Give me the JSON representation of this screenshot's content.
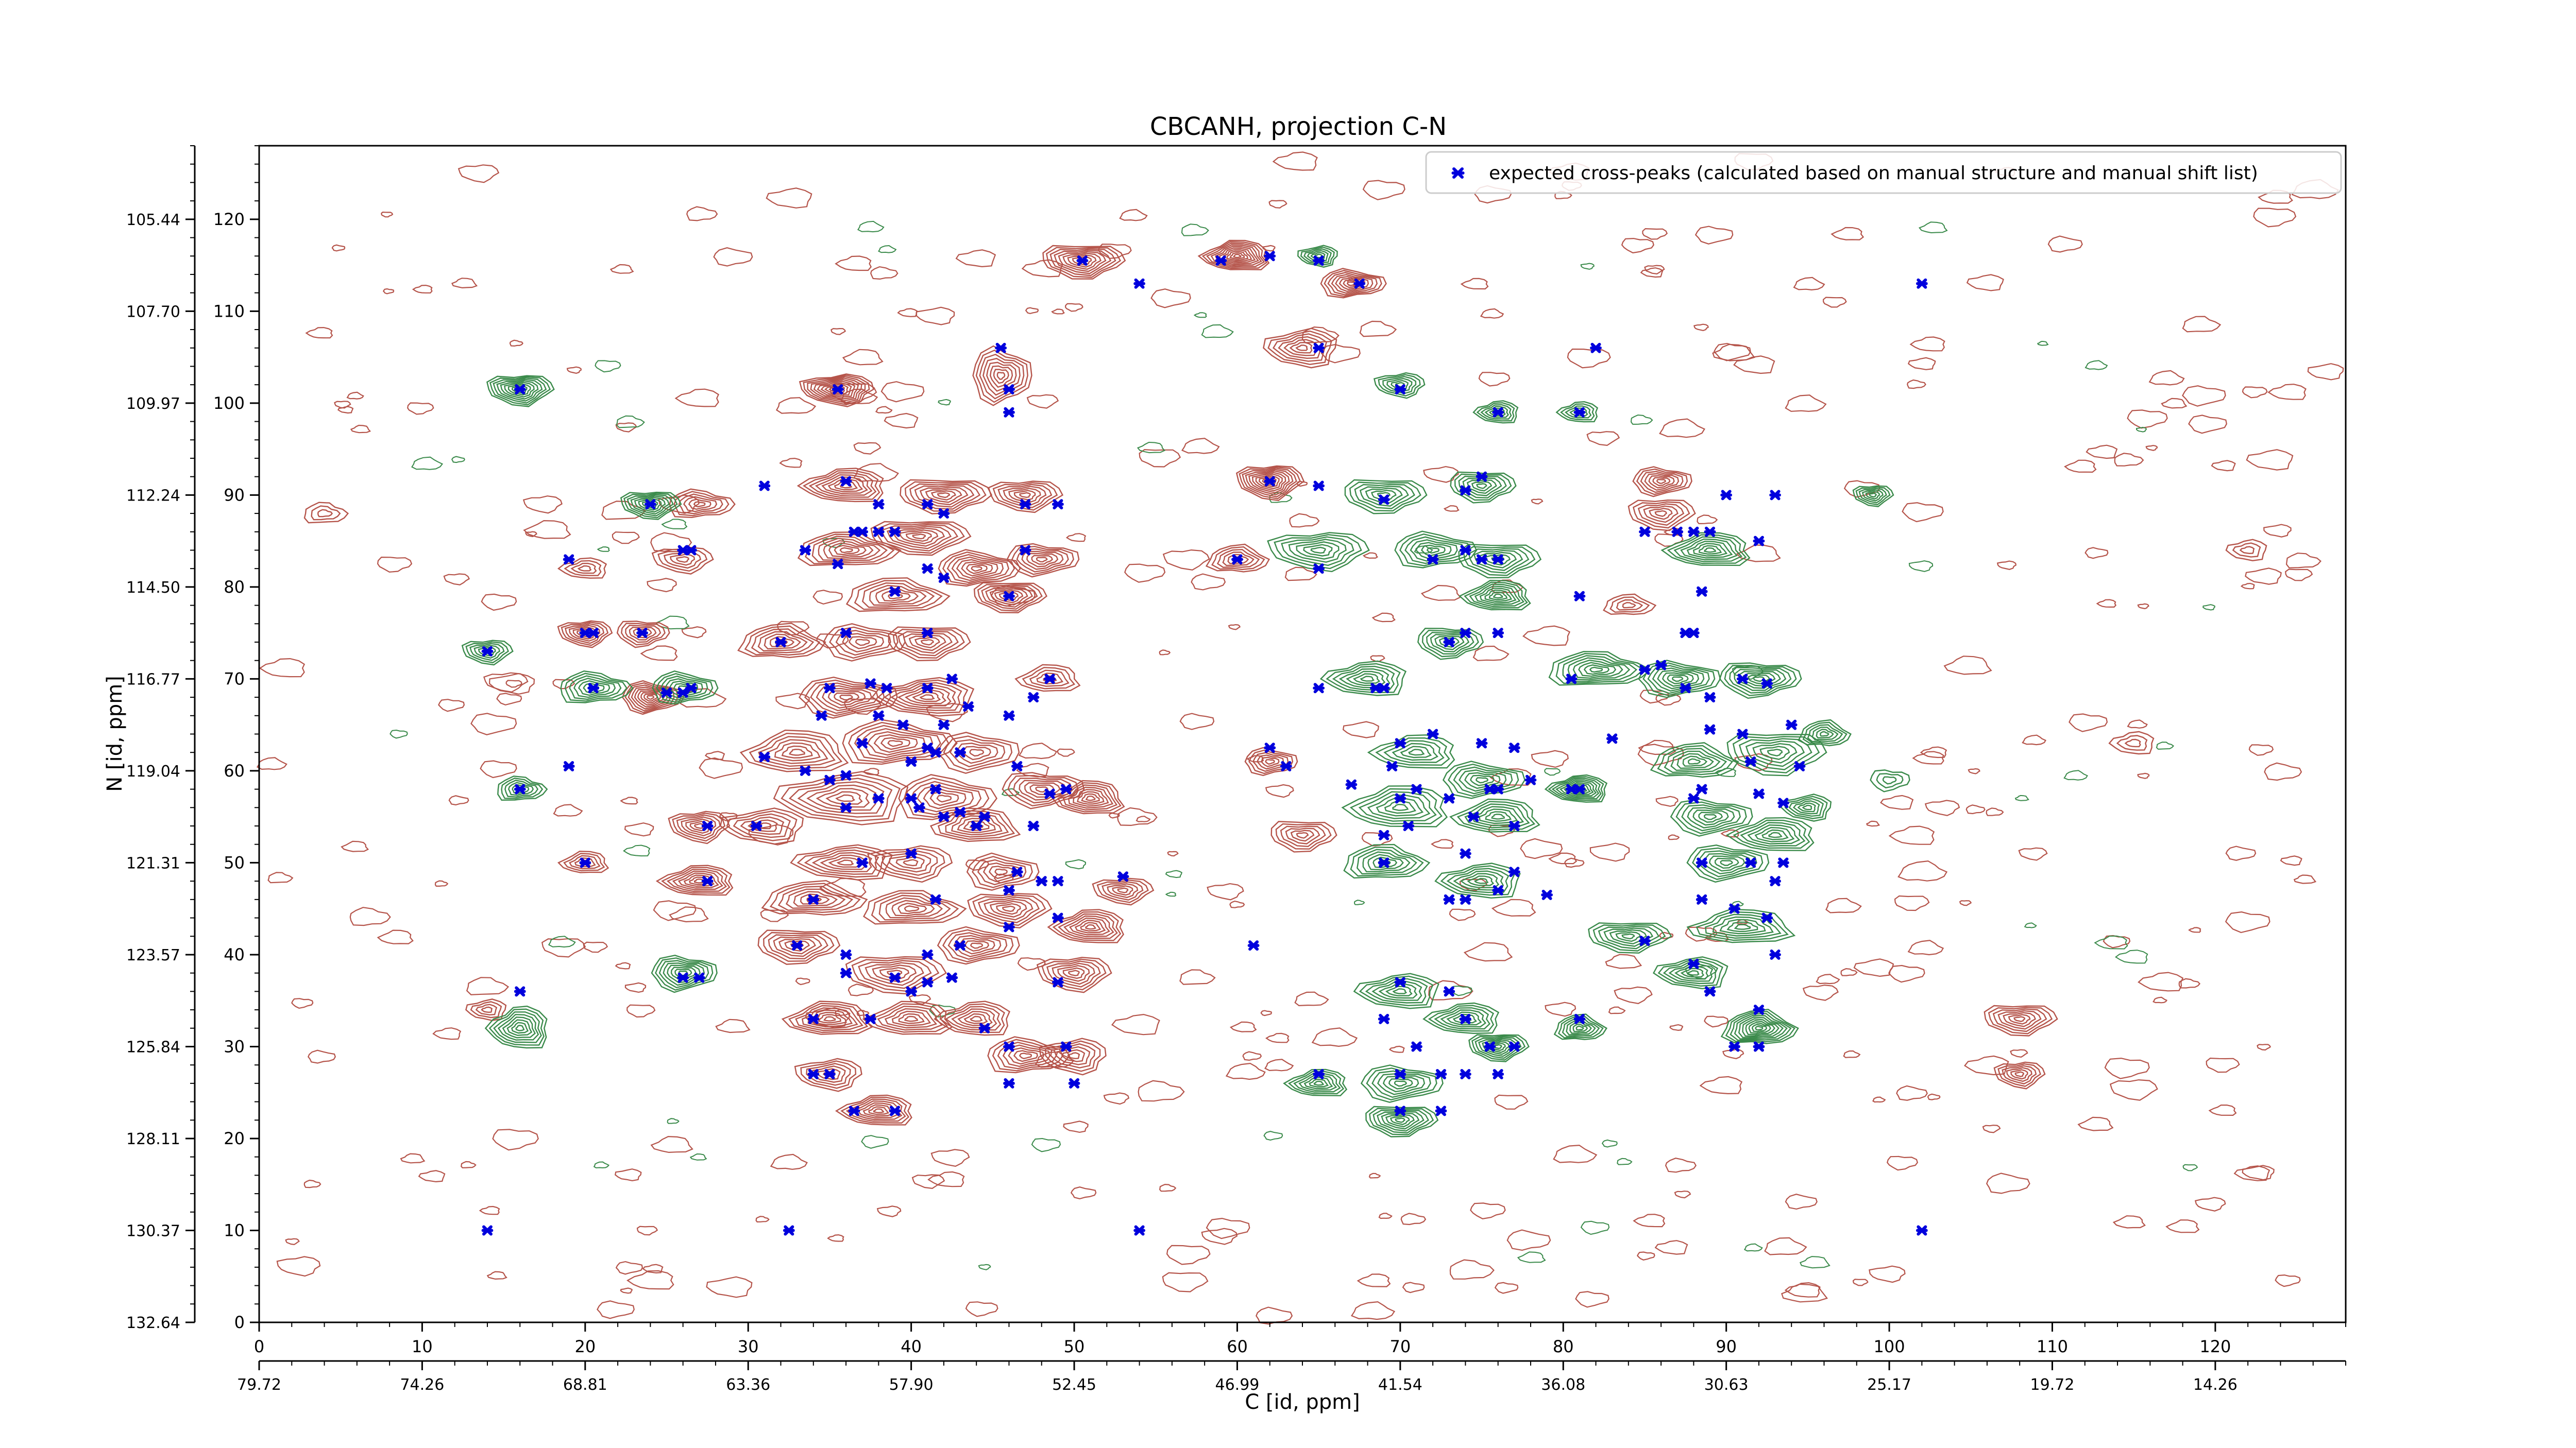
{
  "chart_data": {
    "type": "scatter",
    "title": "CBCANH, projection C-N",
    "xlabel": "C [id, ppm]",
    "ylabel": "N [id, ppm]",
    "xlim": [
      0,
      128
    ],
    "ylim": [
      0,
      128
    ],
    "x_ticks": [
      0,
      10,
      20,
      30,
      40,
      50,
      60,
      70,
      80,
      90,
      100,
      110,
      120
    ],
    "y_ticks": [
      0,
      10,
      20,
      30,
      40,
      50,
      60,
      70,
      80,
      90,
      100,
      110,
      120
    ],
    "x_ppm_ticks": [
      {
        "pos": 0,
        "label": "79.72"
      },
      {
        "pos": 10,
        "label": "74.26"
      },
      {
        "pos": 20,
        "label": "68.81"
      },
      {
        "pos": 30,
        "label": "63.36"
      },
      {
        "pos": 40,
        "label": "57.90"
      },
      {
        "pos": 50,
        "label": "52.45"
      },
      {
        "pos": 60,
        "label": "46.99"
      },
      {
        "pos": 70,
        "label": "41.54"
      },
      {
        "pos": 80,
        "label": "36.08"
      },
      {
        "pos": 90,
        "label": "30.63"
      },
      {
        "pos": 100,
        "label": "25.17"
      },
      {
        "pos": 110,
        "label": "19.72"
      },
      {
        "pos": 120,
        "label": "14.26"
      }
    ],
    "y_ppm_ticks": [
      {
        "pos": 0,
        "label": "132.64"
      },
      {
        "pos": 10,
        "label": "130.37"
      },
      {
        "pos": 20,
        "label": "128.11"
      },
      {
        "pos": 30,
        "label": "125.84"
      },
      {
        "pos": 40,
        "label": "123.57"
      },
      {
        "pos": 50,
        "label": "121.31"
      },
      {
        "pos": 60,
        "label": "119.04"
      },
      {
        "pos": 70,
        "label": "116.77"
      },
      {
        "pos": 80,
        "label": "114.50"
      },
      {
        "pos": 90,
        "label": "112.24"
      },
      {
        "pos": 100,
        "label": "109.97"
      },
      {
        "pos": 110,
        "label": "107.70"
      },
      {
        "pos": 120,
        "label": "105.44"
      }
    ],
    "legend": {
      "placement": "top-right",
      "entries": [
        {
          "label": "expected cross-peaks (calculated based on manual structure and manual shift list)",
          "color": "#0000dd",
          "marker": "x"
        }
      ]
    },
    "colors": {
      "positive_contour": "#b5544a",
      "negative_contour": "#3a8a4a",
      "peak_marker": "#0000dd"
    },
    "contours": {
      "positive": [
        [
          50.5,
          115.5,
          2.5,
          2,
          9
        ],
        [
          60,
          116,
          2.0,
          1.8,
          10
        ],
        [
          67,
          113,
          2.0,
          1.6,
          8
        ],
        [
          35.5,
          101.5,
          2.2,
          1.8,
          10
        ],
        [
          45.5,
          103,
          1.8,
          3.2,
          8
        ],
        [
          64,
          106,
          2.2,
          2.2,
          7
        ],
        [
          36,
          91,
          2.5,
          2.0,
          8
        ],
        [
          42,
          90,
          2.8,
          2.0,
          8
        ],
        [
          47,
          90,
          2.2,
          1.8,
          7
        ],
        [
          62,
          91.5,
          2.0,
          2.0,
          10
        ],
        [
          86,
          91.5,
          1.8,
          1.6,
          7
        ],
        [
          27,
          89,
          2.0,
          1.6,
          6
        ],
        [
          36,
          84,
          3.0,
          2.0,
          8
        ],
        [
          40.5,
          85.5,
          3.0,
          2.0,
          8
        ],
        [
          44,
          82,
          2.5,
          2.0,
          8
        ],
        [
          48,
          83,
          2.2,
          1.8,
          7
        ],
        [
          39,
          79,
          3.0,
          2.0,
          7
        ],
        [
          46,
          79,
          2.2,
          1.8,
          8
        ],
        [
          60,
          83,
          1.8,
          1.6,
          6
        ],
        [
          26,
          83,
          1.8,
          1.5,
          5
        ],
        [
          20,
          75,
          1.6,
          1.5,
          7
        ],
        [
          23.5,
          75,
          1.6,
          1.5,
          6
        ],
        [
          32,
          74,
          2.5,
          2.0,
          7
        ],
        [
          37,
          74,
          2.5,
          2.0,
          6
        ],
        [
          41,
          74,
          2.5,
          2.0,
          7
        ],
        [
          24,
          68,
          1.8,
          1.8,
          9
        ],
        [
          36,
          68,
          3.0,
          2.2,
          8
        ],
        [
          41,
          68,
          3.0,
          2.2,
          8
        ],
        [
          48.5,
          70,
          1.8,
          1.6,
          5
        ],
        [
          33,
          62,
          3.0,
          2.5,
          7
        ],
        [
          39,
          63,
          3.5,
          2.5,
          8
        ],
        [
          44,
          62,
          2.5,
          2.2,
          6
        ],
        [
          36,
          57,
          4.0,
          3.0,
          8
        ],
        [
          42,
          57,
          3.0,
          2.5,
          7
        ],
        [
          48,
          58,
          2.5,
          2.0,
          7
        ],
        [
          51,
          57,
          2.0,
          2.0,
          8
        ],
        [
          27,
          54,
          1.8,
          1.8,
          7
        ],
        [
          31,
          54,
          2.5,
          2.0,
          6
        ],
        [
          44,
          54,
          2.5,
          2.0,
          7
        ],
        [
          36,
          50,
          3.0,
          2.0,
          7
        ],
        [
          40,
          50,
          2.5,
          2.0,
          6
        ],
        [
          45.5,
          49,
          2.2,
          2.0,
          6
        ],
        [
          20,
          50,
          1.4,
          1.3,
          5
        ],
        [
          27,
          48,
          2.2,
          1.8,
          8
        ],
        [
          34,
          46,
          3.0,
          2.0,
          7
        ],
        [
          40,
          45,
          3.0,
          2.0,
          7
        ],
        [
          46,
          45,
          2.5,
          2.0,
          7
        ],
        [
          51,
          43,
          2.2,
          2.0,
          8
        ],
        [
          53,
          47,
          1.8,
          1.5,
          6
        ],
        [
          33,
          41,
          2.5,
          2.0,
          7
        ],
        [
          39,
          38,
          3.0,
          2.2,
          7
        ],
        [
          44,
          41,
          2.5,
          2.0,
          7
        ],
        [
          50,
          38,
          2.2,
          2.0,
          7
        ],
        [
          35,
          33,
          2.5,
          2.0,
          8
        ],
        [
          40,
          33,
          2.5,
          2.0,
          7
        ],
        [
          44,
          33,
          2.2,
          2.0,
          7
        ],
        [
          47,
          29,
          2.5,
          2.0,
          7
        ],
        [
          50,
          29,
          2.0,
          2.0,
          6
        ],
        [
          35,
          27,
          2.0,
          1.8,
          6
        ],
        [
          38,
          23,
          2.2,
          1.8,
          8
        ],
        [
          62,
          61,
          1.6,
          1.5,
          6
        ],
        [
          64,
          53,
          2.0,
          1.8,
          6
        ],
        [
          86,
          88,
          2.0,
          1.8,
          6
        ],
        [
          108,
          27,
          1.5,
          1.5,
          6
        ],
        [
          108,
          33,
          2.2,
          1.8,
          7
        ],
        [
          14,
          34,
          1.2,
          1.2,
          4
        ],
        [
          20,
          82,
          1.4,
          1.2,
          4
        ],
        [
          84,
          78,
          1.5,
          1.2,
          4
        ],
        [
          4,
          88,
          1.3,
          1.2,
          3
        ],
        [
          122,
          84,
          1.2,
          1.2,
          3
        ],
        [
          115,
          63,
          1.3,
          1.3,
          3
        ]
      ],
      "negative": [
        [
          16,
          101.5,
          2.0,
          1.8,
          9
        ],
        [
          24,
          89,
          1.8,
          1.6,
          8
        ],
        [
          14,
          73,
          1.5,
          1.4,
          6
        ],
        [
          20.5,
          69,
          2.2,
          1.8,
          7
        ],
        [
          26,
          69,
          2.0,
          1.8,
          7
        ],
        [
          16,
          58,
          1.5,
          1.4,
          6
        ],
        [
          26,
          38,
          2.0,
          2.0,
          8
        ],
        [
          16,
          32,
          1.8,
          2.5,
          8
        ],
        [
          65,
          116,
          1.2,
          1.2,
          6
        ],
        [
          70,
          102,
          1.5,
          1.4,
          6
        ],
        [
          76,
          99,
          1.3,
          1.3,
          6
        ],
        [
          81,
          99,
          1.2,
          1.2,
          5
        ],
        [
          69,
          90,
          2.5,
          2.0,
          7
        ],
        [
          75,
          91,
          2.0,
          1.8,
          7
        ],
        [
          65,
          84,
          3.0,
          2.2,
          7
        ],
        [
          72,
          84,
          2.5,
          2.0,
          7
        ],
        [
          76,
          83,
          2.5,
          2.0,
          7
        ],
        [
          76,
          79,
          2.0,
          1.8,
          8
        ],
        [
          68,
          70,
          2.5,
          2.0,
          7
        ],
        [
          73,
          74,
          2.0,
          1.8,
          7
        ],
        [
          82,
          71,
          3.0,
          2.0,
          8
        ],
        [
          87,
          70,
          2.5,
          2.0,
          8
        ],
        [
          92,
          70,
          2.5,
          2.0,
          8
        ],
        [
          89,
          84,
          2.5,
          2.0,
          8
        ],
        [
          71,
          62,
          2.5,
          2.0,
          6
        ],
        [
          75,
          59,
          2.5,
          2.0,
          7
        ],
        [
          70,
          56,
          3.0,
          2.5,
          7
        ],
        [
          76,
          55,
          2.5,
          2.0,
          7
        ],
        [
          81,
          58,
          1.8,
          1.6,
          9
        ],
        [
          88,
          61,
          2.5,
          2.0,
          7
        ],
        [
          93,
          62,
          3.0,
          2.5,
          7
        ],
        [
          89,
          55,
          2.5,
          2.0,
          7
        ],
        [
          93,
          53,
          2.5,
          2.0,
          7
        ],
        [
          69,
          50,
          2.5,
          2.0,
          7
        ],
        [
          75,
          48,
          2.5,
          2.0,
          7
        ],
        [
          90,
          50,
          2.5,
          2.0,
          7
        ],
        [
          84,
          42,
          2.5,
          1.8,
          7
        ],
        [
          91,
          43,
          3.0,
          2.0,
          7
        ],
        [
          88,
          38,
          2.2,
          1.8,
          7
        ],
        [
          70,
          36,
          2.5,
          2.0,
          7
        ],
        [
          74,
          33,
          2.2,
          1.8,
          7
        ],
        [
          76,
          30,
          1.8,
          1.6,
          8
        ],
        [
          81,
          32,
          1.5,
          1.5,
          7
        ],
        [
          92,
          32,
          2.2,
          2.0,
          10
        ],
        [
          65,
          26,
          1.8,
          1.6,
          7
        ],
        [
          70,
          26,
          2.5,
          2.0,
          7
        ],
        [
          70,
          22,
          2.2,
          1.8,
          8
        ],
        [
          99,
          90,
          1.2,
          1.2,
          6
        ],
        [
          96,
          64,
          1.5,
          1.5,
          6
        ],
        [
          95,
          56,
          1.5,
          1.5,
          6
        ],
        [
          100,
          59,
          1.2,
          1.2,
          3
        ]
      ]
    },
    "peaks": {
      "x": [
        50.5,
        54,
        59,
        65,
        67.5,
        62,
        65,
        82,
        102,
        16,
        35.5,
        45.5,
        46,
        46,
        70,
        76,
        81,
        24,
        31,
        36,
        38,
        41,
        42,
        47,
        49,
        62,
        65,
        69,
        74,
        75,
        90,
        93,
        26,
        26.5,
        19,
        33.5,
        35.5,
        36.5,
        37,
        38,
        39,
        41,
        42,
        47,
        60,
        65,
        72,
        74,
        75,
        76,
        85,
        87,
        88,
        89,
        92,
        39,
        46,
        81,
        88.5,
        14,
        20,
        20.5,
        23.5,
        32,
        36,
        41,
        73,
        74,
        76,
        87.5,
        88,
        20.5,
        25,
        26.5,
        26,
        35,
        37.5,
        38.5,
        41,
        42.5,
        48.5,
        65,
        68.5,
        69,
        80.5,
        85,
        86,
        87.5,
        89,
        91,
        92.5,
        34.5,
        38,
        39.5,
        41,
        42,
        43.5,
        46,
        47.5,
        62,
        70,
        72,
        75,
        77,
        83,
        89,
        91,
        94,
        19,
        31,
        33.5,
        36,
        37,
        40,
        41.5,
        43,
        46.5,
        49.5,
        63,
        67,
        69.5,
        75.5,
        80.5,
        91.5,
        94.5,
        16,
        35,
        38,
        40.5,
        41.5,
        43,
        48.5,
        70,
        71,
        73,
        76,
        78,
        81,
        88,
        88.5,
        92,
        93.5,
        27.5,
        30.5,
        36,
        40,
        42,
        44,
        44.5,
        44.5,
        47.5,
        69,
        70.5,
        74.5,
        77,
        20,
        27.5,
        37,
        40,
        46.5,
        48,
        69,
        74,
        77,
        88.5,
        91.5,
        93.5,
        93,
        34,
        41.5,
        46,
        49,
        53,
        73,
        74,
        76,
        79,
        88.5,
        90.5,
        92.5,
        33,
        36,
        41,
        43,
        46,
        49,
        61,
        85,
        88,
        93,
        26,
        27,
        36,
        39,
        40,
        41,
        42.5,
        49,
        70,
        73,
        89,
        16,
        34,
        37.5,
        44.5,
        69,
        74,
        81,
        90.5,
        92,
        46,
        49.5,
        71,
        75.5,
        77,
        92,
        34,
        35,
        46,
        50,
        65,
        70,
        72.5,
        74,
        76,
        36.5,
        39,
        70,
        72.5,
        14,
        32.5,
        54,
        102
      ],
      "y": [
        115.5,
        113,
        115.5,
        115.5,
        113,
        116,
        106,
        106,
        113,
        101.5,
        101.5,
        106,
        101.5,
        99,
        101.5,
        99,
        99,
        89,
        91,
        91.5,
        89,
        89,
        88,
        89,
        89,
        91.5,
        91,
        89.5,
        90.5,
        92,
        90,
        90,
        84,
        84,
        83,
        84,
        82.5,
        86,
        86,
        86,
        86,
        82,
        81,
        84,
        83,
        82,
        83,
        84,
        83,
        83,
        86,
        86,
        86,
        86,
        85,
        79.5,
        79,
        79,
        79.5,
        73,
        75,
        75,
        75,
        74,
        75,
        75,
        74,
        75,
        75,
        75,
        75,
        69,
        68.5,
        69,
        68.5,
        69,
        69.5,
        69,
        69,
        70,
        70,
        69,
        69,
        69,
        70,
        71,
        71.5,
        69,
        68,
        70,
        69.5,
        66,
        66,
        65,
        62.5,
        65,
        67,
        66,
        68,
        62.5,
        63,
        64,
        63,
        62.5,
        63.5,
        64.5,
        64,
        65,
        60.5,
        61.5,
        60,
        59.5,
        63,
        61,
        62,
        62,
        60.5,
        58,
        60.5,
        58.5,
        60.5,
        58,
        58,
        61,
        60.5,
        58,
        59,
        57,
        56,
        58,
        55.5,
        57.5,
        57,
        58,
        57,
        58,
        59,
        58,
        57,
        58,
        57.5,
        56.5,
        54,
        54,
        56,
        57,
        55,
        54,
        55,
        55,
        54,
        53,
        54,
        55,
        54,
        50,
        48,
        50,
        51,
        49,
        48,
        50,
        51,
        49,
        50,
        50,
        50,
        48,
        46,
        46,
        47,
        48,
        48.5,
        46,
        46,
        47,
        46.5,
        46,
        45,
        44,
        41,
        40,
        40,
        41,
        43,
        44,
        41,
        41.5,
        39,
        40,
        37.5,
        37.5,
        38,
        37.5,
        36,
        37,
        37.5,
        37,
        37,
        36,
        36,
        36,
        33,
        33,
        32,
        33,
        33,
        33,
        30,
        34,
        30,
        30,
        30,
        30,
        30,
        30,
        27,
        27,
        26,
        26,
        27,
        27,
        27,
        27,
        27,
        23,
        23,
        23,
        23,
        10,
        10,
        10,
        10
      ]
    }
  }
}
